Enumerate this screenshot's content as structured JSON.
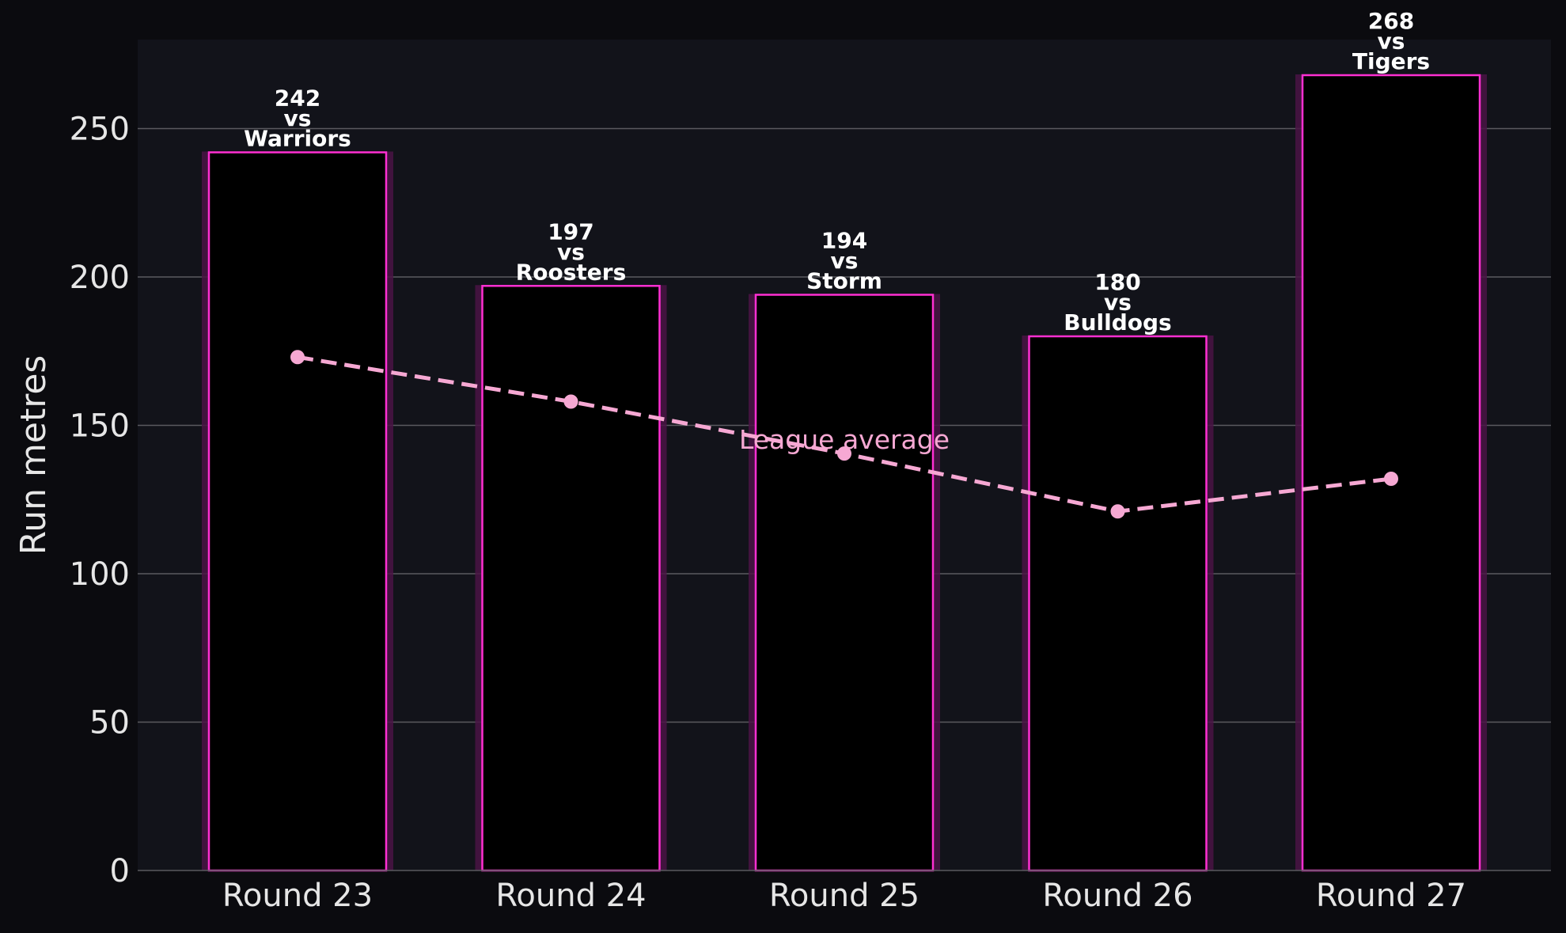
{
  "chart_data": {
    "type": "bar",
    "categories": [
      "Round 23",
      "Round 24",
      "Round 25",
      "Round 26",
      "Round 27"
    ],
    "series": [
      {
        "values": [
          242,
          197,
          194,
          180,
          268
        ],
        "opponents": [
          "Warriors",
          "Roosters",
          "Storm",
          "Bulldogs",
          "Tigers"
        ],
        "label_joiner": "vs"
      },
      {
        "name": "League average",
        "type": "line",
        "style": "dashed",
        "values": [
          173,
          158,
          140.5,
          121,
          132
        ]
      }
    ],
    "ylabel": "Run metres",
    "xlabel": "",
    "ylim": [
      0,
      280
    ],
    "yticks": [
      0,
      50,
      100,
      150,
      200,
      250
    ],
    "grid": "horizontal"
  },
  "colors": {
    "page_background": "#0b0b0f",
    "plot_background": "#12131a",
    "bar_fill": "#000000",
    "bar_edge": "#ff2fd2",
    "bar_glow": "#4a1445",
    "average_line": "#f6a8d3",
    "grid": "#5a5a5f",
    "text": "#e6e6e6"
  }
}
